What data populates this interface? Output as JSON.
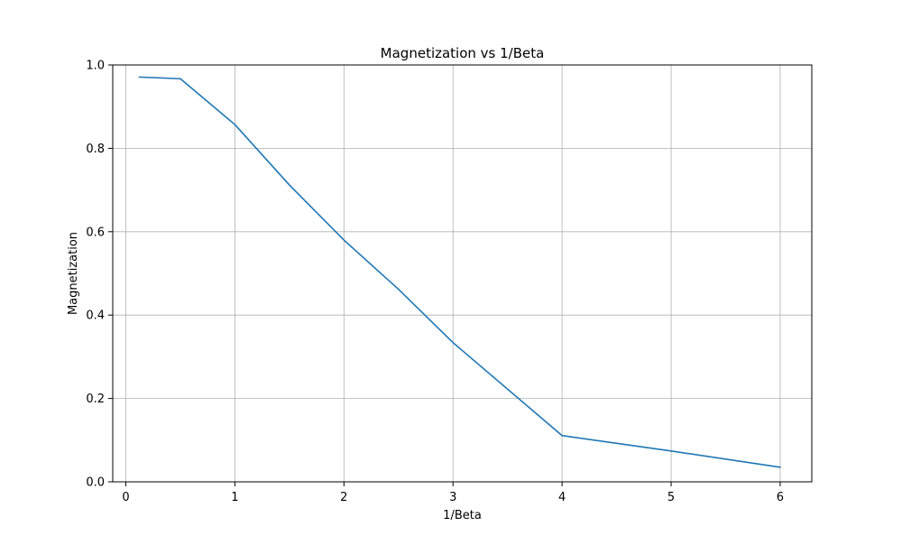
{
  "chart_data": {
    "type": "line",
    "title": "Magnetization vs 1/Beta",
    "xlabel": "1/Beta",
    "ylabel": "Magnetization",
    "xlim": [
      -0.12,
      6.29
    ],
    "ylim": [
      0,
      1.0
    ],
    "xticks": [
      0,
      1,
      2,
      3,
      4,
      5,
      6
    ],
    "yticks": [
      0.0,
      0.2,
      0.4,
      0.6,
      0.8,
      1.0
    ],
    "xtick_labels": [
      "0",
      "1",
      "2",
      "3",
      "4",
      "5",
      "6"
    ],
    "ytick_labels": [
      "0.0",
      "0.2",
      "0.4",
      "0.6",
      "0.8",
      "1.0"
    ],
    "grid": true,
    "legend": "none",
    "series": [
      {
        "color": "#1f77b4",
        "x": [
          0.125,
          0.5,
          1.0,
          1.5,
          2.0,
          2.5,
          3.0,
          4.0,
          5.0,
          6.0
        ],
        "y": [
          0.971,
          0.967,
          0.857,
          0.712,
          0.58,
          0.462,
          0.334,
          0.111,
          0.074,
          0.035
        ]
      }
    ]
  }
}
